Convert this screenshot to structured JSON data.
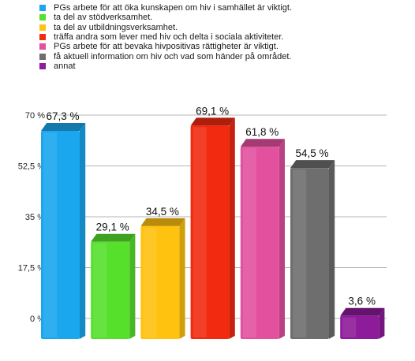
{
  "chart_data": {
    "type": "bar",
    "series": [
      {
        "name": "PGs arbete för att öka kunskapen om hiv i samhället är viktigt.",
        "value": 67.3,
        "label": "67,3 %",
        "color": "#1aa7ee"
      },
      {
        "name": "ta del av stödverksamhet.",
        "value": 29.1,
        "label": "29,1 %",
        "color": "#56e02c"
      },
      {
        "name": "ta del av utbildningsverksamhet.",
        "value": 34.5,
        "label": "34,5 %",
        "color": "#ffc20e"
      },
      {
        "name": "träffa andra som lever med hiv och delta i sociala aktiviteter.",
        "value": 69.1,
        "label": "69,1 %",
        "color": "#f12a10"
      },
      {
        "name": "PGs arbete för att bevaka hivpositivas rättigheter är viktigt.",
        "value": 61.8,
        "label": "61,8 %",
        "color": "#e2509e"
      },
      {
        "name": "få aktuell information om hiv och vad som händer på området.",
        "value": 54.5,
        "label": "54,5 %",
        "color": "#6e6e6e"
      },
      {
        "name": "annat",
        "value": 3.6,
        "label": "3,6 %",
        "color": "#8e1b9a"
      }
    ],
    "ylim": [
      0,
      70
    ],
    "yticks": [
      0,
      17.5,
      35,
      52.5,
      70
    ],
    "ytick_labels": [
      "0 %",
      "17,5 %",
      "35 %",
      "52,5 %",
      "70 %"
    ],
    "grid": true,
    "legend_position": "top"
  }
}
